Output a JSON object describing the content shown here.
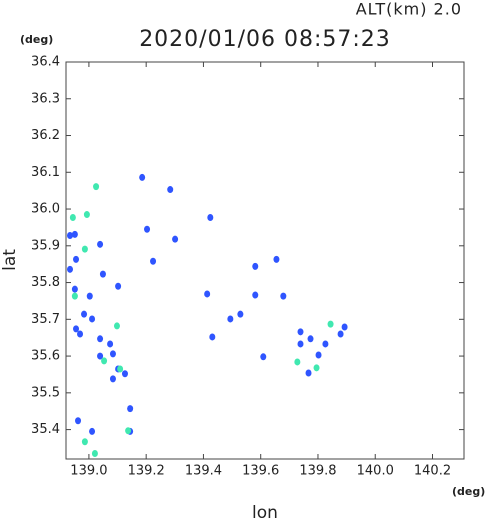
{
  "chart_data": {
    "type": "scatter",
    "title": "2020/01/06 08:57:23",
    "subtitle": "ALT(km)  2.0",
    "x_unit": "(deg)",
    "y_unit": "(deg)",
    "x_label": "lon",
    "y_label": "lat",
    "xlim": [
      138.92,
      140.31
    ],
    "ylim": [
      35.32,
      36.4
    ],
    "xticks": [
      {
        "value": 139,
        "label": "139.0"
      },
      139.2,
      139.4,
      139.6,
      139.8,
      {
        "value": 140,
        "label": "140.0"
      },
      140.2
    ],
    "yticks": [
      36.4,
      36.3,
      36.2,
      36.1,
      {
        "value": 36,
        "label": "36.0"
      },
      35.9,
      35.8,
      35.7,
      35.6,
      35.5,
      35.4
    ],
    "series": [
      {
        "color": "#2f55ff",
        "x": [
          138.934,
          138.951,
          138.955,
          138.934,
          138.951,
          139.003,
          138.955,
          138.969,
          138.983,
          139.039,
          139.049,
          139.102,
          139.011,
          139.039,
          139.074,
          139.039,
          139.084,
          139.102,
          139.126,
          139.084,
          139.144,
          138.962,
          139.011,
          139.144,
          139.186,
          139.284,
          139.424,
          139.203,
          139.224,
          139.301,
          139.413,
          139.431,
          139.494,
          139.529,
          139.581,
          139.679,
          139.609,
          139.739,
          139.739,
          139.774,
          139.802,
          139.826,
          139.879,
          139.893,
          139.767,
          139.655,
          139.581
        ],
        "y": [
          35.928,
          35.931,
          35.863,
          35.836,
          35.782,
          35.763,
          35.674,
          35.66,
          35.714,
          35.904,
          35.823,
          35.79,
          35.701,
          35.647,
          35.633,
          35.6,
          35.606,
          35.565,
          35.552,
          35.538,
          35.457,
          35.424,
          35.395,
          35.395,
          36.086,
          36.053,
          35.977,
          35.945,
          35.858,
          35.918,
          35.769,
          35.652,
          35.701,
          35.714,
          35.766,
          35.763,
          35.598,
          35.666,
          35.633,
          35.647,
          35.603,
          35.633,
          35.66,
          35.679,
          35.554,
          35.863,
          35.844
        ]
      },
      {
        "color": "#40e8b0",
        "x": [
          139.025,
          138.993,
          138.944,
          138.986,
          138.951,
          139.098,
          139.053,
          139.137,
          139.021,
          138.986,
          139.728,
          139.795,
          139.844,
          139.109
        ],
        "y": [
          36.061,
          35.985,
          35.977,
          35.891,
          35.763,
          35.682,
          35.587,
          35.397,
          35.335,
          35.367,
          35.584,
          35.568,
          35.687,
          35.565
        ]
      }
    ]
  }
}
